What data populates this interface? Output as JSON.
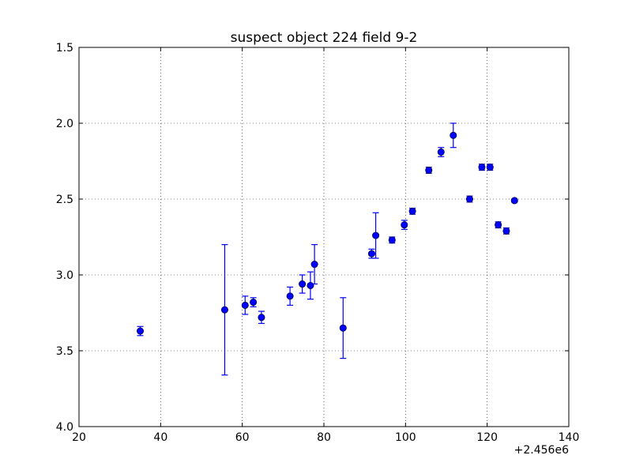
{
  "chart_data": {
    "type": "scatter",
    "title": "suspect object 224 field 9-2",
    "xlabel": "",
    "ylabel": "",
    "x_offset_label": "+2.456e6",
    "xlim": [
      20,
      140
    ],
    "ylim": [
      1.5,
      4.0
    ],
    "y_inverted": true,
    "grid": true,
    "x_ticks": [
      "20",
      "40",
      "60",
      "80",
      "100",
      "120",
      "140"
    ],
    "y_ticks": [
      "1.5",
      "2.0",
      "2.5",
      "3.0",
      "3.5",
      "4.0"
    ],
    "marker_color": "#0000ff",
    "points": [
      {
        "x": 35.0,
        "y": 3.37,
        "err": 0.03
      },
      {
        "x": 55.7,
        "y": 3.23,
        "err": 0.43
      },
      {
        "x": 60.7,
        "y": 3.2,
        "err": 0.06
      },
      {
        "x": 62.7,
        "y": 3.18,
        "err": 0.03
      },
      {
        "x": 64.7,
        "y": 3.28,
        "err": 0.04
      },
      {
        "x": 71.7,
        "y": 3.14,
        "err": 0.06
      },
      {
        "x": 74.7,
        "y": 3.06,
        "err": 0.06
      },
      {
        "x": 76.7,
        "y": 3.07,
        "err": 0.09
      },
      {
        "x": 77.7,
        "y": 2.93,
        "err": 0.13
      },
      {
        "x": 84.7,
        "y": 3.35,
        "err": 0.2
      },
      {
        "x": 91.7,
        "y": 2.86,
        "err": 0.03
      },
      {
        "x": 92.7,
        "y": 2.74,
        "err": 0.15
      },
      {
        "x": 96.7,
        "y": 2.77,
        "err": 0.02
      },
      {
        "x": 99.7,
        "y": 2.67,
        "err": 0.03
      },
      {
        "x": 101.7,
        "y": 2.58,
        "err": 0.02
      },
      {
        "x": 105.7,
        "y": 2.31,
        "err": 0.02
      },
      {
        "x": 108.7,
        "y": 2.19,
        "err": 0.03
      },
      {
        "x": 111.7,
        "y": 2.08,
        "err": 0.08
      },
      {
        "x": 115.7,
        "y": 2.5,
        "err": 0.02
      },
      {
        "x": 118.7,
        "y": 2.29,
        "err": 0.02
      },
      {
        "x": 120.7,
        "y": 2.29,
        "err": 0.02
      },
      {
        "x": 122.7,
        "y": 2.67,
        "err": 0.02
      },
      {
        "x": 124.7,
        "y": 2.71,
        "err": 0.02
      },
      {
        "x": 126.7,
        "y": 2.51,
        "err": 0.01
      }
    ]
  }
}
